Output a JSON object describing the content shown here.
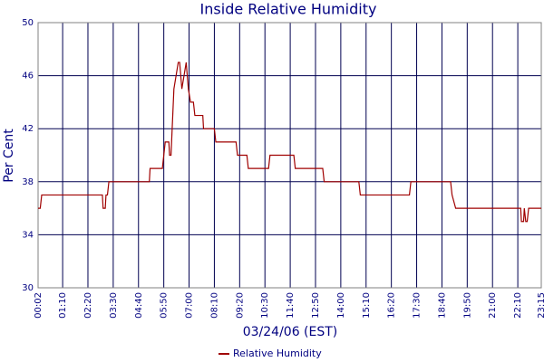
{
  "chart_data": {
    "type": "line",
    "title": "Inside Relative Humidity",
    "y_label": "Per Cent",
    "x_label": "03/24/06 (EST)",
    "x": [
      "00:02",
      "00:08",
      "00:12",
      "03:00",
      "03:02",
      "03:08",
      "03:10",
      "03:14",
      "03:18",
      "05:10",
      "05:12",
      "05:46",
      "05:50",
      "05:54",
      "06:04",
      "06:06",
      "06:10",
      "06:18",
      "06:30",
      "06:34",
      "06:40",
      "06:46",
      "06:52",
      "06:58",
      "07:04",
      "07:12",
      "07:16",
      "07:38",
      "07:40",
      "08:10",
      "08:14",
      "09:10",
      "09:14",
      "09:40",
      "09:44",
      "10:40",
      "10:44",
      "11:50",
      "11:54",
      "13:10",
      "13:14",
      "14:50",
      "14:54",
      "17:10",
      "17:14",
      "19:04",
      "19:08",
      "19:18",
      "22:18",
      "22:20",
      "22:26",
      "22:28",
      "22:32",
      "22:36",
      "22:40",
      "23:15"
    ],
    "series": [
      {
        "name": "Relative Humidity",
        "color": "#a00000",
        "values": [
          36,
          36,
          37,
          37,
          36,
          36,
          37,
          37,
          38,
          38,
          39,
          39,
          40,
          41,
          41,
          40,
          40,
          45,
          47,
          47,
          45,
          46,
          47,
          45,
          44,
          44,
          43,
          43,
          42,
          42,
          41,
          41,
          40,
          40,
          39,
          39,
          40,
          40,
          39,
          39,
          38,
          38,
          37,
          37,
          38,
          38,
          37,
          36,
          36,
          35,
          35,
          36,
          35,
          35,
          36,
          36
        ]
      }
    ],
    "xticks": [
      "00:02",
      "01:10",
      "02:20",
      "03:30",
      "04:40",
      "05:50",
      "07:00",
      "08:10",
      "09:20",
      "10:30",
      "11:40",
      "12:50",
      "14:00",
      "15:10",
      "16:20",
      "17:30",
      "18:40",
      "19:50",
      "21:00",
      "22:10",
      "23:15"
    ],
    "ylim": [
      30,
      50
    ],
    "yticks": [
      30,
      34,
      38,
      42,
      46,
      50
    ],
    "grid": true,
    "legend": "bottom"
  }
}
